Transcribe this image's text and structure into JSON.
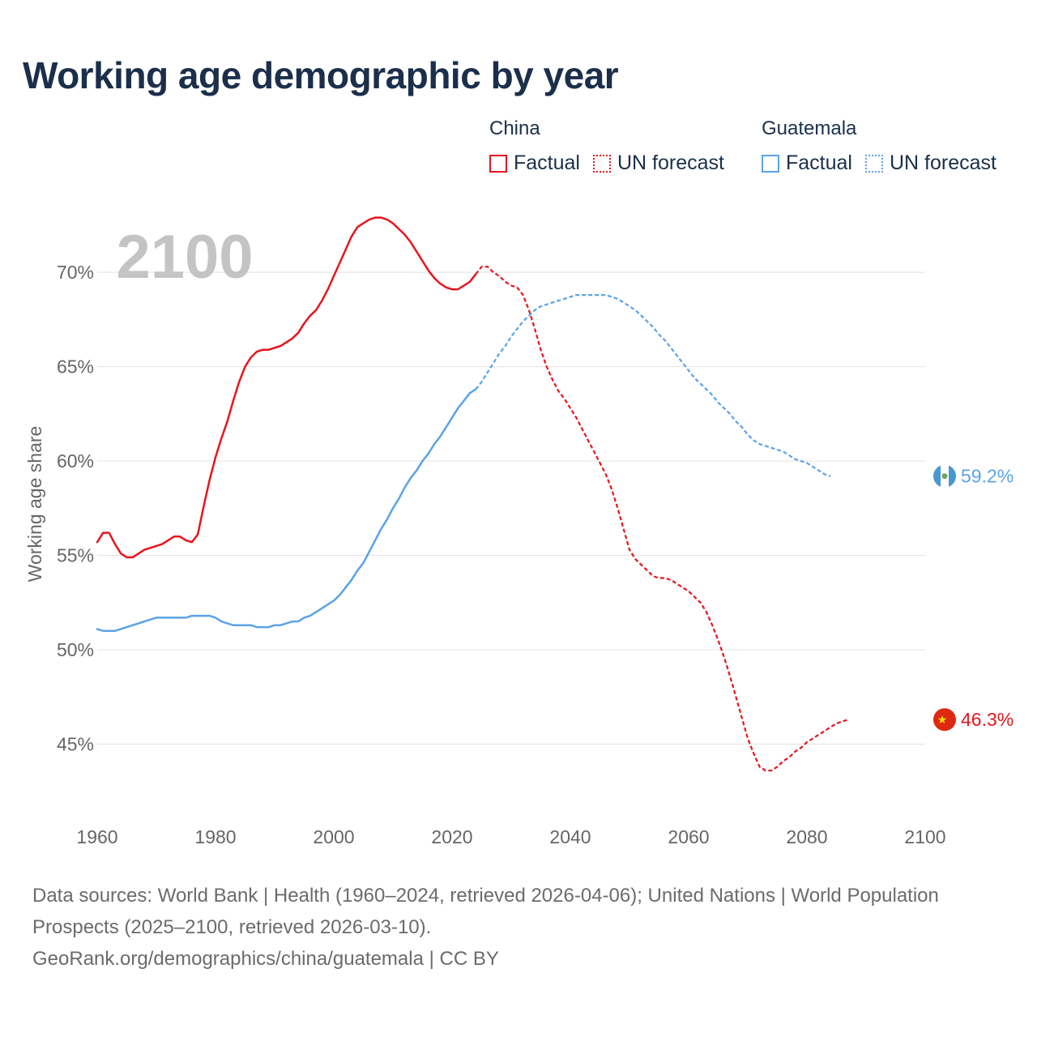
{
  "title": "Working age demographic by year",
  "legend": {
    "groups": [
      {
        "name": "China",
        "factual_label": "Factual",
        "forecast_label": "UN forecast",
        "color": "#e8141c"
      },
      {
        "name": "Guatemala",
        "factual_label": "Factual",
        "forecast_label": "UN forecast",
        "color": "#5ba3e6"
      }
    ]
  },
  "footer": {
    "sources": "Data sources: World Bank | Health (1960–2024, retrieved 2026-04-06); United Nations | World Population Prospects (2025–2100, retrieved 2026-03-10).",
    "attribution": "GeoRank.org/demographics/china/guatemala | CC BY"
  },
  "chart_data": {
    "type": "line",
    "year_watermark": "2100",
    "ylabel": "Working age share",
    "xlim": [
      1960,
      2100
    ],
    "ylim": [
      41.5,
      74
    ],
    "x_ticks": [
      1960,
      1980,
      2000,
      2020,
      2040,
      2060,
      2080,
      2100
    ],
    "y_ticks": [
      45,
      50,
      55,
      60,
      65,
      70
    ],
    "y_tick_labels": [
      "45%",
      "50%",
      "55%",
      "60%",
      "65%",
      "70%"
    ],
    "grid": "horizontal",
    "series": [
      {
        "name": "China",
        "color": "#e8141c",
        "end_label": "46.3%",
        "end_flag": "china-flag",
        "factual": [
          [
            1960,
            55.7
          ],
          [
            1961,
            56.2
          ],
          [
            1962,
            56.2
          ],
          [
            1963,
            55.6
          ],
          [
            1964,
            55.1
          ],
          [
            1965,
            54.9
          ],
          [
            1966,
            54.9
          ],
          [
            1967,
            55.1
          ],
          [
            1968,
            55.3
          ],
          [
            1969,
            55.4
          ],
          [
            1970,
            55.5
          ],
          [
            1971,
            55.6
          ],
          [
            1972,
            55.8
          ],
          [
            1973,
            56.0
          ],
          [
            1974,
            56.0
          ],
          [
            1975,
            55.8
          ],
          [
            1976,
            55.7
          ],
          [
            1977,
            56.1
          ],
          [
            1978,
            57.6
          ],
          [
            1979,
            59.0
          ],
          [
            1980,
            60.2
          ],
          [
            1981,
            61.2
          ],
          [
            1982,
            62.1
          ],
          [
            1983,
            63.2
          ],
          [
            1984,
            64.2
          ],
          [
            1985,
            65.0
          ],
          [
            1986,
            65.5
          ],
          [
            1987,
            65.8
          ],
          [
            1988,
            65.9
          ],
          [
            1989,
            65.9
          ],
          [
            1990,
            66.0
          ],
          [
            1991,
            66.1
          ],
          [
            1992,
            66.3
          ],
          [
            1993,
            66.5
          ],
          [
            1994,
            66.8
          ],
          [
            1995,
            67.3
          ],
          [
            1996,
            67.7
          ],
          [
            1997,
            68.0
          ],
          [
            1998,
            68.5
          ],
          [
            1999,
            69.1
          ],
          [
            2000,
            69.8
          ],
          [
            2001,
            70.5
          ],
          [
            2002,
            71.2
          ],
          [
            2003,
            71.9
          ],
          [
            2004,
            72.4
          ],
          [
            2005,
            72.6
          ],
          [
            2006,
            72.8
          ],
          [
            2007,
            72.9
          ],
          [
            2008,
            72.9
          ],
          [
            2009,
            72.8
          ],
          [
            2010,
            72.6
          ],
          [
            2011,
            72.3
          ],
          [
            2012,
            72.0
          ],
          [
            2013,
            71.6
          ],
          [
            2014,
            71.1
          ],
          [
            2015,
            70.6
          ],
          [
            2016,
            70.1
          ],
          [
            2017,
            69.7
          ],
          [
            2018,
            69.4
          ],
          [
            2019,
            69.2
          ],
          [
            2020,
            69.1
          ],
          [
            2021,
            69.1
          ],
          [
            2022,
            69.3
          ],
          [
            2023,
            69.5
          ],
          [
            2024,
            69.9
          ]
        ],
        "forecast": [
          [
            2024,
            69.9
          ],
          [
            2025,
            70.3
          ],
          [
            2026,
            70.3
          ],
          [
            2027,
            70.0
          ],
          [
            2028,
            69.8
          ],
          [
            2029,
            69.5
          ],
          [
            2030,
            69.3
          ],
          [
            2031,
            69.2
          ],
          [
            2032,
            68.8
          ],
          [
            2033,
            68.0
          ],
          [
            2034,
            67.0
          ],
          [
            2035,
            65.9
          ],
          [
            2036,
            65.0
          ],
          [
            2037,
            64.3
          ],
          [
            2038,
            63.7
          ],
          [
            2039,
            63.3
          ],
          [
            2040,
            62.8
          ],
          [
            2041,
            62.3
          ],
          [
            2042,
            61.7
          ],
          [
            2043,
            61.1
          ],
          [
            2044,
            60.5
          ],
          [
            2045,
            59.9
          ],
          [
            2046,
            59.3
          ],
          [
            2047,
            58.5
          ],
          [
            2048,
            57.5
          ],
          [
            2049,
            56.4
          ],
          [
            2050,
            55.3
          ],
          [
            2051,
            54.8
          ],
          [
            2052,
            54.5
          ],
          [
            2053,
            54.2
          ],
          [
            2054,
            53.9
          ],
          [
            2055,
            53.8
          ],
          [
            2056,
            53.8
          ],
          [
            2057,
            53.7
          ],
          [
            2058,
            53.5
          ],
          [
            2059,
            53.3
          ],
          [
            2060,
            53.1
          ],
          [
            2061,
            52.8
          ],
          [
            2062,
            52.5
          ],
          [
            2063,
            52.0
          ],
          [
            2064,
            51.3
          ],
          [
            2065,
            50.5
          ],
          [
            2066,
            49.6
          ],
          [
            2067,
            48.6
          ],
          [
            2068,
            47.5
          ],
          [
            2069,
            46.4
          ],
          [
            2070,
            45.3
          ],
          [
            2071,
            44.5
          ],
          [
            2072,
            43.8
          ],
          [
            2073,
            43.6
          ],
          [
            2074,
            43.6
          ],
          [
            2075,
            43.8
          ],
          [
            2076,
            44.1
          ],
          [
            2077,
            44.3
          ],
          [
            2078,
            44.6
          ],
          [
            2079,
            44.8
          ],
          [
            2080,
            45.1
          ],
          [
            2081,
            45.3
          ],
          [
            2082,
            45.5
          ],
          [
            2083,
            45.7
          ],
          [
            2084,
            45.9
          ],
          [
            2085,
            46.1
          ],
          [
            2086,
            46.2
          ],
          [
            2087,
            46.3
          ]
        ]
      },
      {
        "name": "Guatemala",
        "color": "#5ba3e6",
        "end_label": "59.2%",
        "end_flag": "guatemala-flag",
        "factual": [
          [
            1960,
            51.1
          ],
          [
            1961,
            51.0
          ],
          [
            1962,
            51.0
          ],
          [
            1963,
            51.0
          ],
          [
            1964,
            51.1
          ],
          [
            1965,
            51.2
          ],
          [
            1966,
            51.3
          ],
          [
            1967,
            51.4
          ],
          [
            1968,
            51.5
          ],
          [
            1969,
            51.6
          ],
          [
            1970,
            51.7
          ],
          [
            1971,
            51.7
          ],
          [
            1972,
            51.7
          ],
          [
            1973,
            51.7
          ],
          [
            1974,
            51.7
          ],
          [
            1975,
            51.7
          ],
          [
            1976,
            51.8
          ],
          [
            1977,
            51.8
          ],
          [
            1978,
            51.8
          ],
          [
            1979,
            51.8
          ],
          [
            1980,
            51.7
          ],
          [
            1981,
            51.5
          ],
          [
            1982,
            51.4
          ],
          [
            1983,
            51.3
          ],
          [
            1984,
            51.3
          ],
          [
            1985,
            51.3
          ],
          [
            1986,
            51.3
          ],
          [
            1987,
            51.2
          ],
          [
            1988,
            51.2
          ],
          [
            1989,
            51.2
          ],
          [
            1990,
            51.3
          ],
          [
            1991,
            51.3
          ],
          [
            1992,
            51.4
          ],
          [
            1993,
            51.5
          ],
          [
            1994,
            51.5
          ],
          [
            1995,
            51.7
          ],
          [
            1996,
            51.8
          ],
          [
            1997,
            52.0
          ],
          [
            1998,
            52.2
          ],
          [
            1999,
            52.4
          ],
          [
            2000,
            52.6
          ],
          [
            2001,
            52.9
          ],
          [
            2002,
            53.3
          ],
          [
            2003,
            53.7
          ],
          [
            2004,
            54.2
          ],
          [
            2005,
            54.6
          ],
          [
            2006,
            55.2
          ],
          [
            2007,
            55.8
          ],
          [
            2008,
            56.4
          ],
          [
            2009,
            56.9
          ],
          [
            2010,
            57.5
          ],
          [
            2011,
            58.0
          ],
          [
            2012,
            58.6
          ],
          [
            2013,
            59.1
          ],
          [
            2014,
            59.5
          ],
          [
            2015,
            60.0
          ],
          [
            2016,
            60.4
          ],
          [
            2017,
            60.9
          ],
          [
            2018,
            61.3
          ],
          [
            2019,
            61.8
          ],
          [
            2020,
            62.3
          ],
          [
            2021,
            62.8
          ],
          [
            2022,
            63.2
          ],
          [
            2023,
            63.6
          ],
          [
            2024,
            63.8
          ]
        ],
        "forecast": [
          [
            2024,
            63.8
          ],
          [
            2025,
            64.2
          ],
          [
            2026,
            64.7
          ],
          [
            2027,
            65.2
          ],
          [
            2028,
            65.7
          ],
          [
            2029,
            66.1
          ],
          [
            2030,
            66.6
          ],
          [
            2031,
            67.0
          ],
          [
            2032,
            67.4
          ],
          [
            2033,
            67.7
          ],
          [
            2034,
            68.0
          ],
          [
            2035,
            68.2
          ],
          [
            2036,
            68.3
          ],
          [
            2037,
            68.4
          ],
          [
            2038,
            68.5
          ],
          [
            2039,
            68.6
          ],
          [
            2040,
            68.7
          ],
          [
            2041,
            68.8
          ],
          [
            2042,
            68.8
          ],
          [
            2043,
            68.8
          ],
          [
            2044,
            68.8
          ],
          [
            2045,
            68.8
          ],
          [
            2046,
            68.8
          ],
          [
            2047,
            68.7
          ],
          [
            2048,
            68.6
          ],
          [
            2049,
            68.4
          ],
          [
            2050,
            68.2
          ],
          [
            2051,
            68.0
          ],
          [
            2052,
            67.7
          ],
          [
            2053,
            67.4
          ],
          [
            2054,
            67.1
          ],
          [
            2055,
            66.7
          ],
          [
            2056,
            66.4
          ],
          [
            2057,
            66.0
          ],
          [
            2058,
            65.6
          ],
          [
            2059,
            65.2
          ],
          [
            2060,
            64.8
          ],
          [
            2061,
            64.4
          ],
          [
            2062,
            64.1
          ],
          [
            2063,
            63.8
          ],
          [
            2064,
            63.5
          ],
          [
            2065,
            63.1
          ],
          [
            2066,
            62.8
          ],
          [
            2067,
            62.5
          ],
          [
            2068,
            62.1
          ],
          [
            2069,
            61.8
          ],
          [
            2070,
            61.4
          ],
          [
            2071,
            61.1
          ],
          [
            2072,
            60.9
          ],
          [
            2073,
            60.8
          ],
          [
            2074,
            60.7
          ],
          [
            2075,
            60.6
          ],
          [
            2076,
            60.5
          ],
          [
            2077,
            60.3
          ],
          [
            2078,
            60.1
          ],
          [
            2079,
            60.0
          ],
          [
            2080,
            59.9
          ],
          [
            2081,
            59.7
          ],
          [
            2082,
            59.5
          ],
          [
            2083,
            59.3
          ],
          [
            2084,
            59.2
          ]
        ]
      }
    ]
  }
}
